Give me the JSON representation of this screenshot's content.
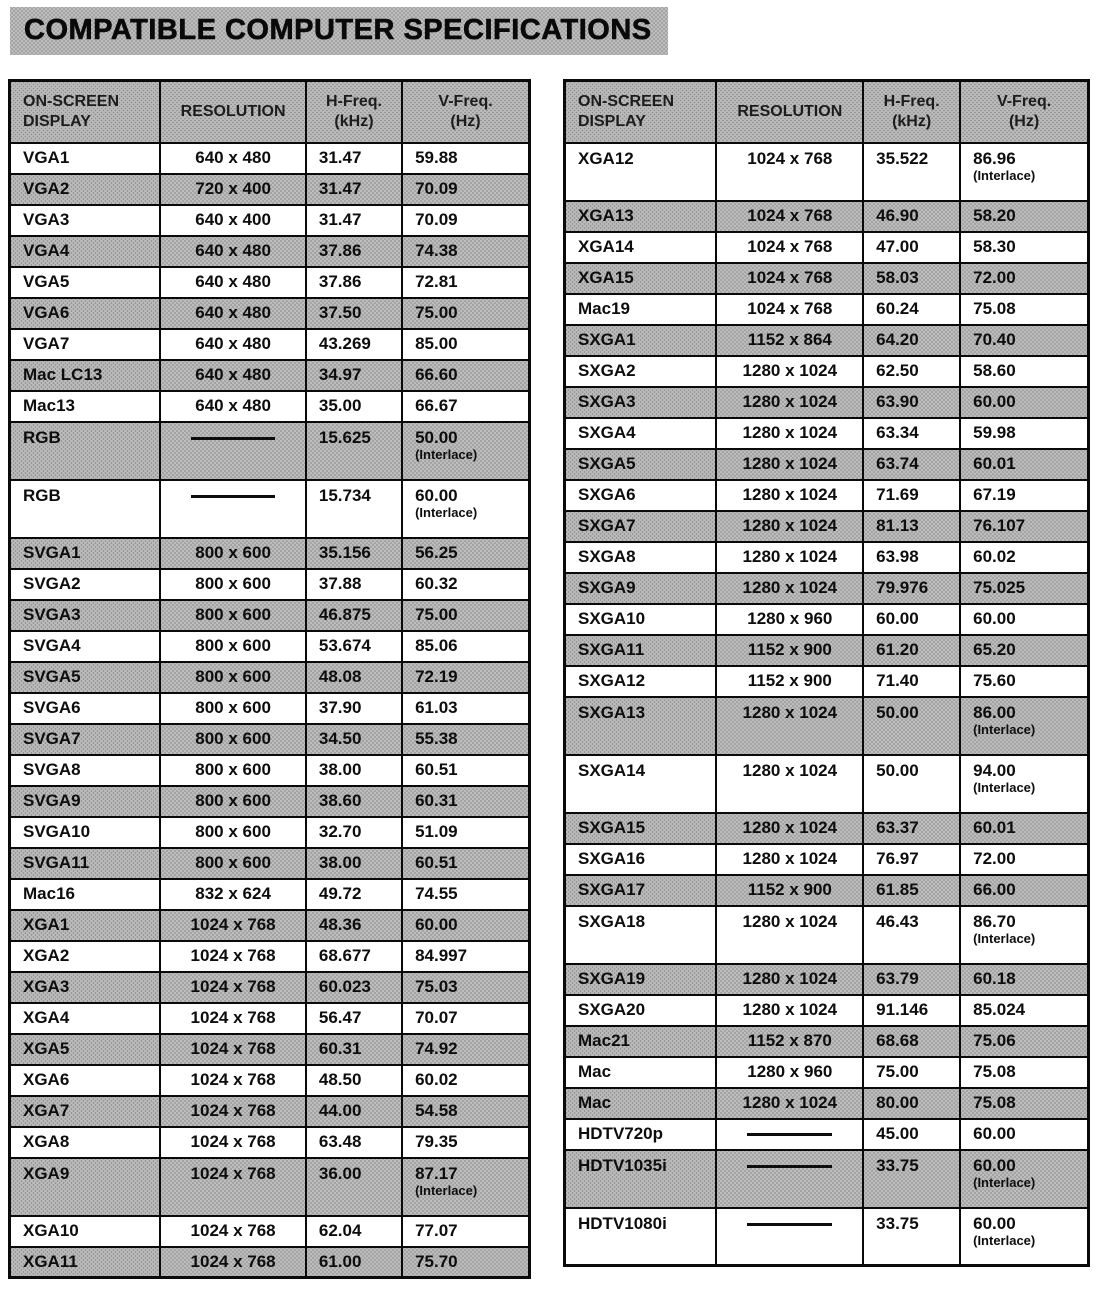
{
  "title": "COMPATIBLE COMPUTER SPECIFICATIONS",
  "colors": {
    "page_bg": "#ffffff",
    "shaded_row": "#bdbdbd",
    "halftone_dot": "#8b8b8b",
    "border": "#0a0a0a",
    "text": "#0d0d0d"
  },
  "headers": [
    "ON-SCREEN\nDISPLAY",
    "RESOLUTION",
    "H-Freq.\n(kHz)",
    "V-Freq.\n(Hz)"
  ],
  "tables": [
    {
      "rows": [
        {
          "d": "VGA1",
          "r": "640 x 480",
          "h": "31.47",
          "v": "59.88"
        },
        {
          "d": "VGA2",
          "r": "720 x 400",
          "h": "31.47",
          "v": "70.09"
        },
        {
          "d": "VGA3",
          "r": "640 x 400",
          "h": "31.47",
          "v": "70.09"
        },
        {
          "d": "VGA4",
          "r": "640 x 480",
          "h": "37.86",
          "v": "74.38"
        },
        {
          "d": "VGA5",
          "r": "640 x 480",
          "h": "37.86",
          "v": "72.81"
        },
        {
          "d": "VGA6",
          "r": "640 x 480",
          "h": "37.50",
          "v": "75.00"
        },
        {
          "d": "VGA7",
          "r": "640 x 480",
          "h": "43.269",
          "v": "85.00"
        },
        {
          "d": "Mac LC13",
          "r": "640 x 480",
          "h": "34.97",
          "v": "66.60"
        },
        {
          "d": "Mac13",
          "r": "640 x 480",
          "h": "35.00",
          "v": "66.67"
        },
        {
          "d": "RGB",
          "r": "",
          "dash": true,
          "h": "15.625",
          "v": "50.00",
          "note": "(Interlace)"
        },
        {
          "d": "RGB",
          "r": "",
          "dash": true,
          "h": "15.734",
          "v": "60.00",
          "note": "(Interlace)"
        },
        {
          "d": "SVGA1",
          "r": "800 x 600",
          "h": "35.156",
          "v": "56.25"
        },
        {
          "d": "SVGA2",
          "r": "800 x 600",
          "h": "37.88",
          "v": "60.32"
        },
        {
          "d": "SVGA3",
          "r": "800 x 600",
          "h": "46.875",
          "v": "75.00"
        },
        {
          "d": "SVGA4",
          "r": "800 x 600",
          "h": "53.674",
          "v": "85.06"
        },
        {
          "d": "SVGA5",
          "r": "800 x 600",
          "h": "48.08",
          "v": "72.19"
        },
        {
          "d": "SVGA6",
          "r": "800 x 600",
          "h": "37.90",
          "v": "61.03"
        },
        {
          "d": "SVGA7",
          "r": "800 x 600",
          "h": "34.50",
          "v": "55.38"
        },
        {
          "d": "SVGA8",
          "r": "800 x 600",
          "h": "38.00",
          "v": "60.51"
        },
        {
          "d": "SVGA9",
          "r": "800 x 600",
          "h": "38.60",
          "v": "60.31"
        },
        {
          "d": "SVGA10",
          "r": "800 x 600",
          "h": "32.70",
          "v": "51.09"
        },
        {
          "d": "SVGA11",
          "r": "800 x 600",
          "h": "38.00",
          "v": "60.51"
        },
        {
          "d": "Mac16",
          "r": "832 x 624",
          "h": "49.72",
          "v": "74.55"
        },
        {
          "d": "XGA1",
          "r": "1024 x 768",
          "h": "48.36",
          "v": "60.00"
        },
        {
          "d": "XGA2",
          "r": "1024 x 768",
          "h": "68.677",
          "v": "84.997"
        },
        {
          "d": "XGA3",
          "r": "1024 x 768",
          "h": "60.023",
          "v": "75.03"
        },
        {
          "d": "XGA4",
          "r": "1024 x 768",
          "h": "56.47",
          "v": "70.07"
        },
        {
          "d": "XGA5",
          "r": "1024 x 768",
          "h": "60.31",
          "v": "74.92"
        },
        {
          "d": "XGA6",
          "r": "1024 x 768",
          "h": "48.50",
          "v": "60.02"
        },
        {
          "d": "XGA7",
          "r": "1024 x 768",
          "h": "44.00",
          "v": "54.58"
        },
        {
          "d": "XGA8",
          "r": "1024 x 768",
          "h": "63.48",
          "v": "79.35"
        },
        {
          "d": "XGA9",
          "r": "1024 x 768",
          "h": "36.00",
          "v": "87.17",
          "note": "(Interlace)"
        },
        {
          "d": "XGA10",
          "r": "1024 x 768",
          "h": "62.04",
          "v": "77.07"
        },
        {
          "d": "XGA11",
          "r": "1024 x 768",
          "h": "61.00",
          "v": "75.70"
        }
      ]
    },
    {
      "rows": [
        {
          "d": "XGA12",
          "r": "1024 x 768",
          "h": "35.522",
          "v": "86.96",
          "note": "(Interlace)"
        },
        {
          "d": "XGA13",
          "r": "1024 x 768",
          "h": "46.90",
          "v": "58.20"
        },
        {
          "d": "XGA14",
          "r": "1024 x 768",
          "h": "47.00",
          "v": "58.30"
        },
        {
          "d": "XGA15",
          "r": "1024 x 768",
          "h": "58.03",
          "v": "72.00"
        },
        {
          "d": "Mac19",
          "r": "1024 x 768",
          "h": "60.24",
          "v": "75.08"
        },
        {
          "d": "SXGA1",
          "r": "1152 x 864",
          "h": "64.20",
          "v": "70.40"
        },
        {
          "d": "SXGA2",
          "r": "1280 x 1024",
          "h": "62.50",
          "v": "58.60"
        },
        {
          "d": "SXGA3",
          "r": "1280 x 1024",
          "h": "63.90",
          "v": "60.00"
        },
        {
          "d": "SXGA4",
          "r": "1280 x 1024",
          "h": "63.34",
          "v": "59.98"
        },
        {
          "d": "SXGA5",
          "r": "1280 x 1024",
          "h": "63.74",
          "v": "60.01"
        },
        {
          "d": "SXGA6",
          "r": "1280 x 1024",
          "h": "71.69",
          "v": "67.19"
        },
        {
          "d": "SXGA7",
          "r": "1280 x 1024",
          "h": "81.13",
          "v": "76.107"
        },
        {
          "d": "SXGA8",
          "r": "1280 x 1024",
          "h": "63.98",
          "v": "60.02"
        },
        {
          "d": "SXGA9",
          "r": "1280 x 1024",
          "h": "79.976",
          "v": "75.025"
        },
        {
          "d": "SXGA10",
          "r": "1280 x 960",
          "h": "60.00",
          "v": "60.00"
        },
        {
          "d": "SXGA11",
          "r": "1152 x 900",
          "h": "61.20",
          "v": "65.20"
        },
        {
          "d": "SXGA12",
          "r": "1152 x 900",
          "h": "71.40",
          "v": "75.60"
        },
        {
          "d": "SXGA13",
          "r": "1280 x 1024",
          "h": "50.00",
          "v": "86.00",
          "note": "(Interlace)"
        },
        {
          "d": "SXGA14",
          "r": "1280 x 1024",
          "h": "50.00",
          "v": "94.00",
          "note": "(Interlace)"
        },
        {
          "d": "SXGA15",
          "r": "1280 x 1024",
          "h": "63.37",
          "v": "60.01"
        },
        {
          "d": "SXGA16",
          "r": "1280 x 1024",
          "h": "76.97",
          "v": "72.00"
        },
        {
          "d": "SXGA17",
          "r": "1152 x 900",
          "h": "61.85",
          "v": "66.00"
        },
        {
          "d": "SXGA18",
          "r": "1280 x 1024",
          "h": "46.43",
          "v": "86.70",
          "note": "(Interlace)"
        },
        {
          "d": "SXGA19",
          "r": "1280 x 1024",
          "h": "63.79",
          "v": "60.18"
        },
        {
          "d": "SXGA20",
          "r": "1280 x 1024",
          "h": "91.146",
          "v": "85.024"
        },
        {
          "d": "Mac21",
          "r": "1152 x 870",
          "h": "68.68",
          "v": "75.06"
        },
        {
          "d": "Mac",
          "r": "1280 x 960",
          "h": "75.00",
          "v": "75.08"
        },
        {
          "d": "Mac",
          "r": "1280 x 1024",
          "h": "80.00",
          "v": "75.08"
        },
        {
          "d": "HDTV720p",
          "r": "",
          "dash": true,
          "h": "45.00",
          "v": "60.00"
        },
        {
          "d": "HDTV1035i",
          "r": "",
          "dash": true,
          "h": "33.75",
          "v": "60.00",
          "note": "(Interlace)"
        },
        {
          "d": "HDTV1080i",
          "r": "",
          "dash": true,
          "h": "33.75",
          "v": "60.00",
          "note": "(Interlace)"
        }
      ]
    }
  ]
}
